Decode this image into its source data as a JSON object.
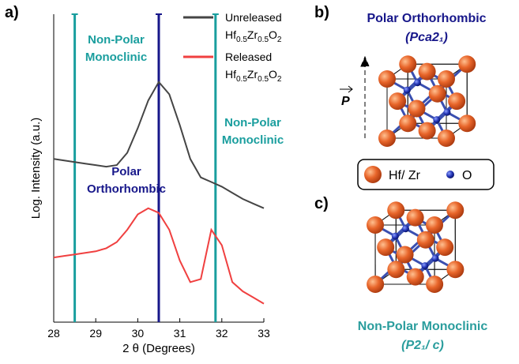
{
  "chart_data": {
    "type": "line",
    "panel_label": "a)",
    "xlabel": "2 θ (Degrees)",
    "ylabel": "Log. Intensity (a.u.)",
    "x": [
      28,
      28.25,
      28.5,
      28.75,
      29,
      29.25,
      29.5,
      29.75,
      30,
      30.25,
      30.5,
      30.75,
      31,
      31.25,
      31.5,
      31.75,
      32,
      32.25,
      32.5,
      32.75,
      33
    ],
    "series": [
      {
        "name": "Unreleased Hf0.5Zr0.5O2",
        "color": "#454545",
        "values": [
          53,
          52.5,
          52,
          51.5,
          51,
          50.5,
          51,
          55,
          63,
          72,
          78,
          74,
          64,
          53,
          47,
          45.5,
          44,
          42,
          40,
          38.5,
          37
        ]
      },
      {
        "name": "Released Hf0.5Zr0.5O2",
        "color": "#f04040",
        "values": [
          21,
          21.5,
          22,
          22.5,
          23,
          24,
          26,
          30,
          35,
          37,
          35.5,
          30,
          20,
          13,
          14,
          30,
          25,
          13,
          10,
          8,
          6
        ]
      }
    ],
    "xlim": [
      28,
      33
    ],
    "xticks": [
      28,
      29,
      30,
      31,
      32,
      33
    ],
    "ylim": [
      0,
      100
    ],
    "reference_lines": [
      {
        "x": 28.5,
        "color": "#1a9e9e",
        "label": [
          "Non-Polar",
          "Monoclinic"
        ]
      },
      {
        "x": 30.5,
        "color": "#17178a",
        "label": [
          "Polar",
          "Orthorhombic"
        ]
      },
      {
        "x": 31.85,
        "color": "#1a9e9e",
        "label": [
          "Non-Polar",
          "Monoclinic"
        ]
      }
    ]
  },
  "structures": {
    "b": {
      "label": "b)",
      "title": "Polar Orthorhombic",
      "space_group": "(Pca2₁)",
      "vector": "P"
    },
    "legend": {
      "big_atom": "Hf/ Zr",
      "small_atom": "O"
    },
    "c": {
      "label": "c)",
      "title": "Non-Polar Monoclinic",
      "space_group": "(P2₁/ c)"
    }
  }
}
